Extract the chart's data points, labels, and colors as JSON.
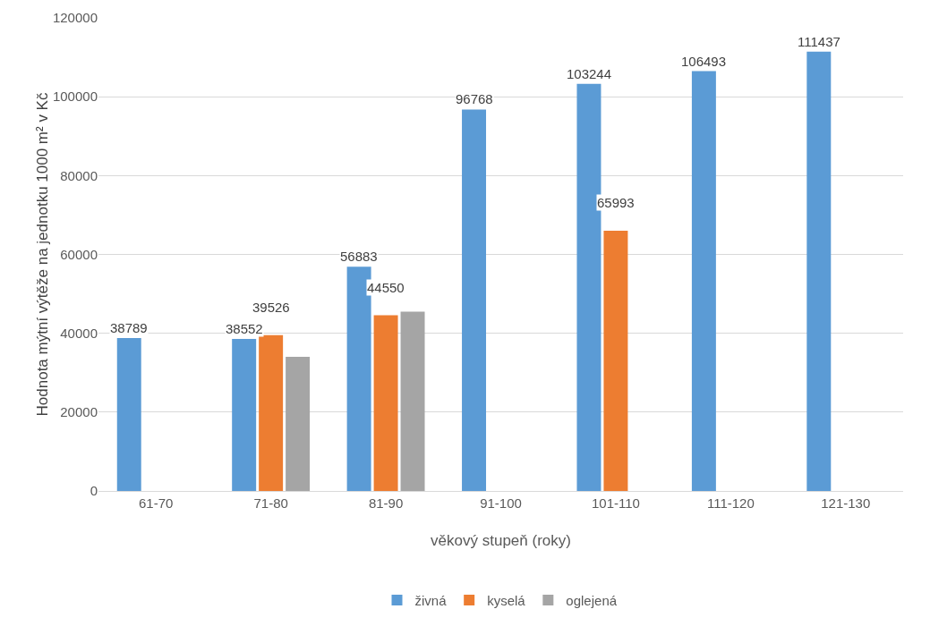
{
  "chart_data": {
    "type": "bar",
    "xlabel": "věkový stupeň (roky)",
    "ylabel": "Hodnota mýtní výtěže na jednotku 1000 m² v Kč",
    "categories": [
      "61-70",
      "71-80",
      "81-90",
      "91-100",
      "101-110",
      "111-120",
      "121-130"
    ],
    "series": [
      {
        "name": "živná",
        "color": "#5b9bd5",
        "values": [
          38789,
          38552,
          56883,
          96768,
          103244,
          106493,
          111437
        ],
        "value_labels": [
          "38789",
          "38552",
          "56883",
          "96768",
          "103244",
          "106493",
          "111437"
        ]
      },
      {
        "name": "kyselá",
        "color": "#ed7d31",
        "values": [
          null,
          39526,
          44550,
          null,
          65993,
          null,
          null
        ],
        "value_labels": [
          null,
          "39526",
          "44550",
          null,
          "65993",
          null,
          null
        ]
      },
      {
        "name": "oglejená",
        "color": "#a5a5a5",
        "values": [
          null,
          34000,
          45500,
          null,
          null,
          null,
          null
        ]
      }
    ],
    "ylim": [
      0,
      120000
    ],
    "yticks": [
      0,
      20000,
      40000,
      60000,
      80000,
      100000,
      120000
    ],
    "grid": "y",
    "legend": "bottom"
  }
}
